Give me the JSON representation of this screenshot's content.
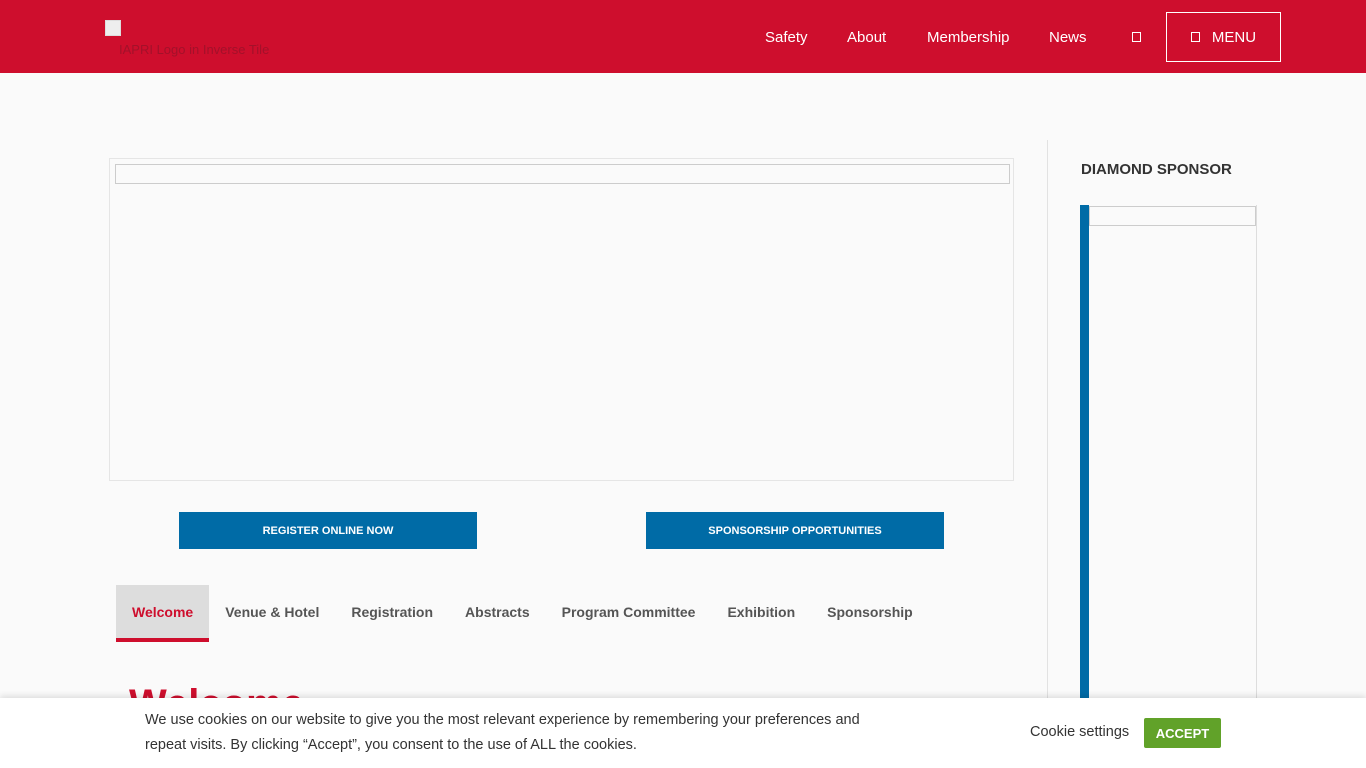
{
  "header": {
    "logo_alt": "IAPRI Logo in Inverse Tile",
    "nav": [
      "Safety",
      "About",
      "Membership",
      "News"
    ],
    "menu_label": "MENU",
    "brand_color": "#ce0e2d"
  },
  "buttons": {
    "register": "REGISTER ONLINE NOW",
    "sponsorship": "SPONSORSHIP OPPORTUNITIES"
  },
  "tabs": [
    "Welcome",
    "Venue & Hotel",
    "Registration",
    "Abstracts",
    "Program Committee",
    "Exhibition",
    "Sponsorship"
  ],
  "content": {
    "heading": "Welcome"
  },
  "sidebar": {
    "title": "DIAMOND SPONSOR"
  },
  "cookie": {
    "text": "We use cookies on our website to give you the most relevant experience by remembering your preferences and repeat visits. By clicking “Accept”, you consent to the use of ALL the cookies.",
    "settings": "Cookie settings",
    "accept": "ACCEPT"
  }
}
